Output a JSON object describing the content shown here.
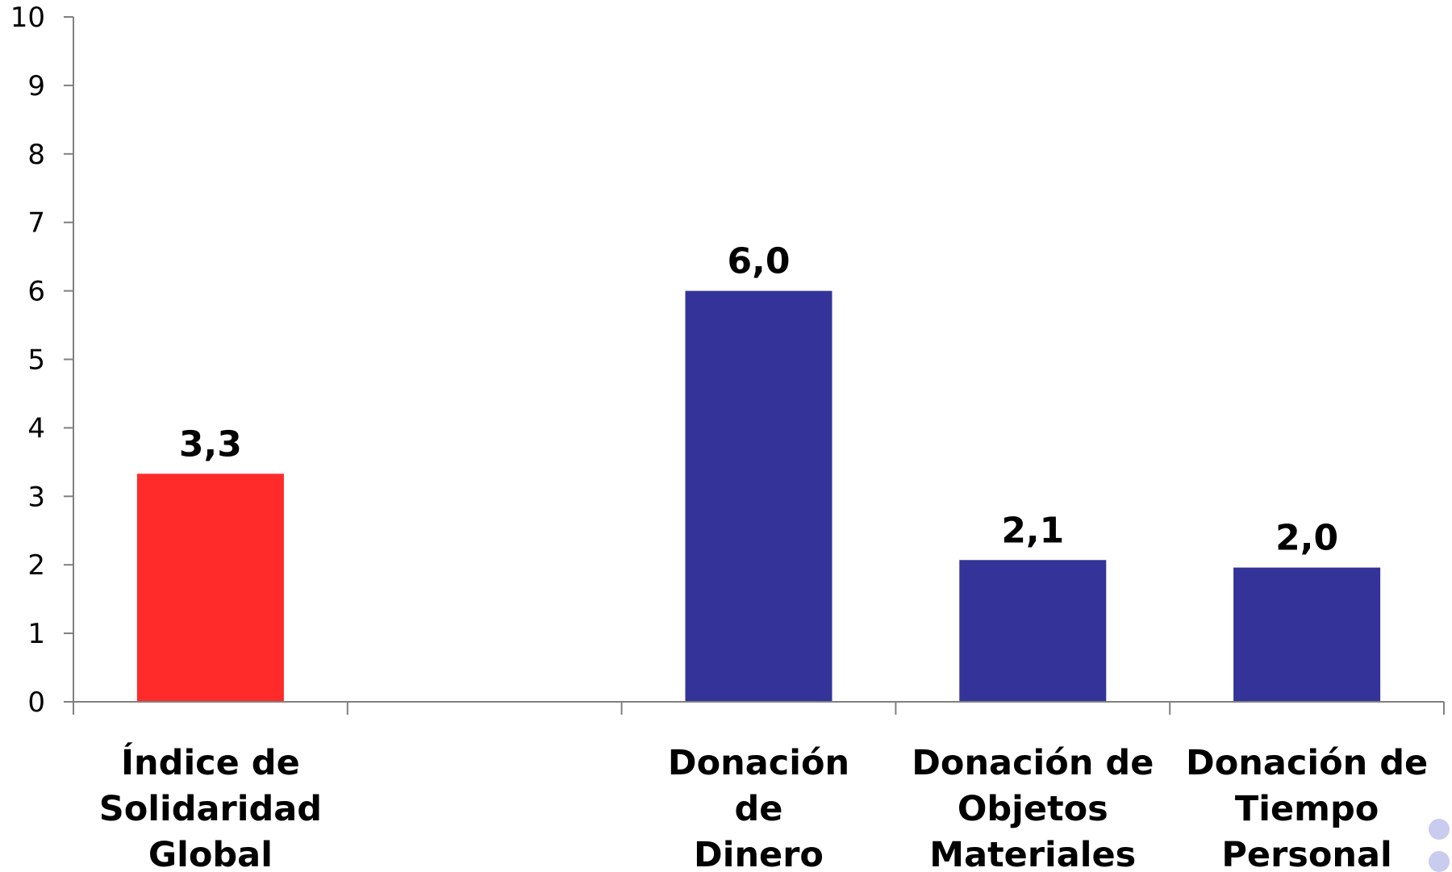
{
  "chart_data": {
    "type": "bar",
    "title": "",
    "xlabel": "",
    "ylabel": "",
    "ylim": [
      0,
      10
    ],
    "yticks": [
      0,
      1,
      2,
      3,
      4,
      5,
      6,
      7,
      8,
      9,
      10
    ],
    "grid": false,
    "legend": "none",
    "categories": [
      {
        "lines": [
          "Índice de",
          "Solidaridad",
          "Global"
        ]
      },
      {
        "lines": []
      },
      {
        "lines": [
          "Donación",
          "de",
          "Dinero"
        ]
      },
      {
        "lines": [
          "Donación de",
          "Objetos",
          "Materiales"
        ]
      },
      {
        "lines": [
          "Donación de",
          "Tiempo",
          "Personal"
        ]
      }
    ],
    "values": [
      3.33,
      null,
      6.0,
      2.07,
      1.96
    ],
    "data_labels": [
      "3,3",
      "",
      "6,0",
      "2,1",
      "2,0"
    ],
    "colors": [
      "#ff2a2a",
      null,
      "#333399",
      "#333399",
      "#333399"
    ]
  }
}
